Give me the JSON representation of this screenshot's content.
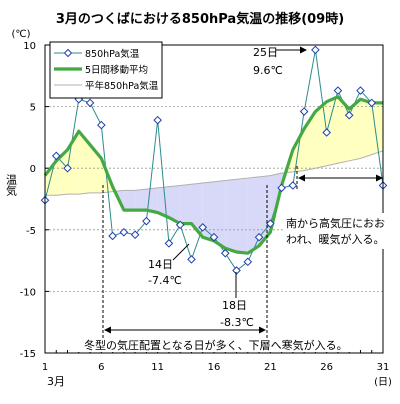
{
  "chart_data": {
    "type": "line",
    "title": "3月のつくばにおける850hPa気温の推移(09時)",
    "y_unit_label": "(℃)",
    "ylabel": "温気",
    "x_unit_label": "(日)",
    "x_month_label": "3月",
    "xlim": [
      1,
      31
    ],
    "ylim": [
      -15,
      10
    ],
    "x_tick_values": [
      1,
      6,
      11,
      16,
      21,
      26,
      31
    ],
    "x_tick_labels": [
      "1",
      "6",
      "11",
      "16",
      "21",
      "26",
      "31"
    ],
    "y_tick_values": [
      10,
      5,
      0,
      -5,
      -10,
      -15
    ],
    "y_tick_labels": [
      "10",
      "5",
      "0",
      "-5",
      "-10",
      "-15"
    ],
    "legend_placement": "top-left",
    "x": [
      1,
      2,
      3,
      4,
      5,
      6,
      7,
      8,
      9,
      10,
      11,
      12,
      13,
      14,
      15,
      16,
      17,
      18,
      19,
      20,
      21,
      22,
      23,
      24,
      25,
      26,
      27,
      28,
      29,
      30,
      31
    ],
    "series": [
      {
        "name": "850hPa気温",
        "color": "#2a8c8c",
        "marker": "diamond",
        "values": [
          -2.6,
          1.0,
          0.0,
          5.6,
          5.3,
          3.5,
          -5.5,
          -5.2,
          -5.4,
          -4.3,
          3.9,
          -6.1,
          -4.6,
          -7.4,
          -4.8,
          -5.6,
          -6.9,
          -8.3,
          -7.6,
          -5.6,
          -4.5,
          -1.6,
          -1.4,
          4.6,
          9.6,
          2.9,
          6.3,
          4.3,
          6.3,
          5.3,
          -1.4
        ]
      },
      {
        "name": "5日間移動平均",
        "color": "#44a843",
        "values": [
          -0.6,
          0.6,
          1.5,
          3.0,
          1.9,
          0.8,
          -1.5,
          -3.4,
          -3.4,
          -3.4,
          -3.6,
          -4.0,
          -4.5,
          -4.5,
          -5.6,
          -5.9,
          -6.5,
          -6.8,
          -6.9,
          -6.3,
          -5.2,
          -1.4,
          1.5,
          3.2,
          4.6,
          5.4,
          5.8,
          4.8,
          5.6,
          5.3,
          5.3
        ]
      },
      {
        "name": "平年850hPa気温",
        "color": "#b0b0b0",
        "values": [
          -2.2,
          -2.2,
          -2.1,
          -2.1,
          -2.0,
          -2.0,
          -1.9,
          -1.8,
          -1.8,
          -1.7,
          -1.6,
          -1.5,
          -1.4,
          -1.3,
          -1.2,
          -1.1,
          -1.0,
          -0.9,
          -0.8,
          -0.7,
          -0.6,
          -0.4,
          -0.3,
          -0.2,
          0.0,
          0.2,
          0.4,
          0.6,
          0.8,
          1.1,
          1.4
        ]
      }
    ],
    "fill_above_color": "#ffffc0",
    "fill_below_color": "#d8d8f8",
    "annotations": {
      "day25": {
        "day": "25日",
        "value": "9.6℃"
      },
      "day14": {
        "day": "14日",
        "value": "-7.4℃"
      },
      "day18": {
        "day": "18日",
        "value": "-8.3℃"
      },
      "warm_note": [
        "南から高気圧におお",
        "われ、暖気が入る。"
      ],
      "cold_note": "冬型の気圧配置となる日が多く、下層へ寒気が入る。"
    }
  }
}
